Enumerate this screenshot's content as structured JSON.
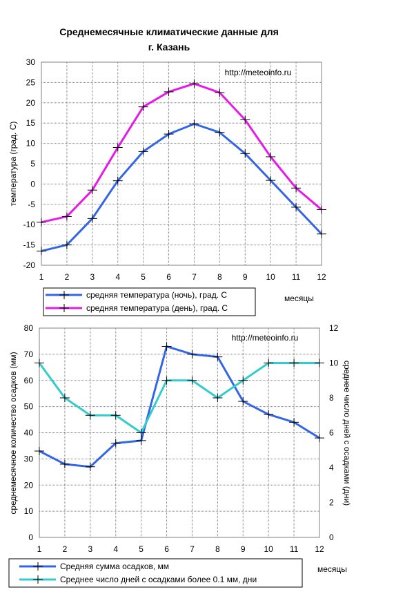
{
  "title_line1": "Среднемесячные климатические данные для",
  "title_line2": "г.  Казань",
  "chart_data": [
    {
      "type": "line",
      "watermark": "http://meteoinfo.ru",
      "xlabel": "месяцы",
      "ylabel": "температура (град. С)",
      "x": [
        1,
        2,
        3,
        4,
        5,
        6,
        7,
        8,
        9,
        10,
        11,
        12
      ],
      "xticks": [
        "1",
        "2",
        "3",
        "4",
        "5",
        "6",
        "7",
        "8",
        "9",
        "10",
        "11",
        "12"
      ],
      "ylim": [
        -20,
        30
      ],
      "yticks": [
        "-20",
        "-15",
        "-10",
        "-5",
        "0",
        "5",
        "10",
        "15",
        "20",
        "25",
        "30"
      ],
      "grid": true,
      "series": [
        {
          "name": "средняя температура (ночь), град. С",
          "color": "#3366e6",
          "values": [
            -16.5,
            -15.0,
            -8.5,
            0.8,
            8.0,
            12.3,
            14.8,
            12.7,
            7.5,
            0.9,
            -5.7,
            -12.3
          ]
        },
        {
          "name": "средняя температура (день), град. С",
          "color": "#e619e6",
          "values": [
            -9.4,
            -8.0,
            -1.5,
            9.0,
            19.0,
            22.7,
            24.7,
            22.5,
            15.8,
            6.7,
            -1.0,
            -6.3
          ]
        }
      ]
    },
    {
      "type": "line",
      "watermark": "http://meteoinfo.ru",
      "xlabel": "месяцы",
      "ylabel": "среднемесячное количество осадков (мм)",
      "y2label": "среднее число дней с осадками (дни)",
      "x": [
        1,
        2,
        3,
        4,
        5,
        6,
        7,
        8,
        9,
        10,
        11,
        12
      ],
      "xticks": [
        "1",
        "2",
        "3",
        "4",
        "5",
        "6",
        "7",
        "8",
        "9",
        "10",
        "11",
        "12"
      ],
      "ylim": [
        0,
        80
      ],
      "yticks": [
        "0",
        "10",
        "20",
        "30",
        "40",
        "50",
        "60",
        "70",
        "80"
      ],
      "y2lim": [
        0,
        12
      ],
      "y2ticks": [
        "0",
        "2",
        "4",
        "6",
        "8",
        "10",
        "12"
      ],
      "grid": true,
      "series": [
        {
          "name": "Средняя сумма осадков, мм",
          "color": "#3366e6",
          "axis": "left",
          "values": [
            33,
            28,
            27,
            36,
            37,
            73,
            70,
            69,
            52,
            47,
            44,
            38
          ]
        },
        {
          "name": "Среднее число дней с  осадками более 0.1 мм, дни",
          "color": "#33cccc",
          "axis": "right",
          "values": [
            10,
            8,
            7,
            7,
            6,
            9,
            9,
            8,
            9,
            10,
            10,
            10
          ]
        }
      ]
    }
  ]
}
